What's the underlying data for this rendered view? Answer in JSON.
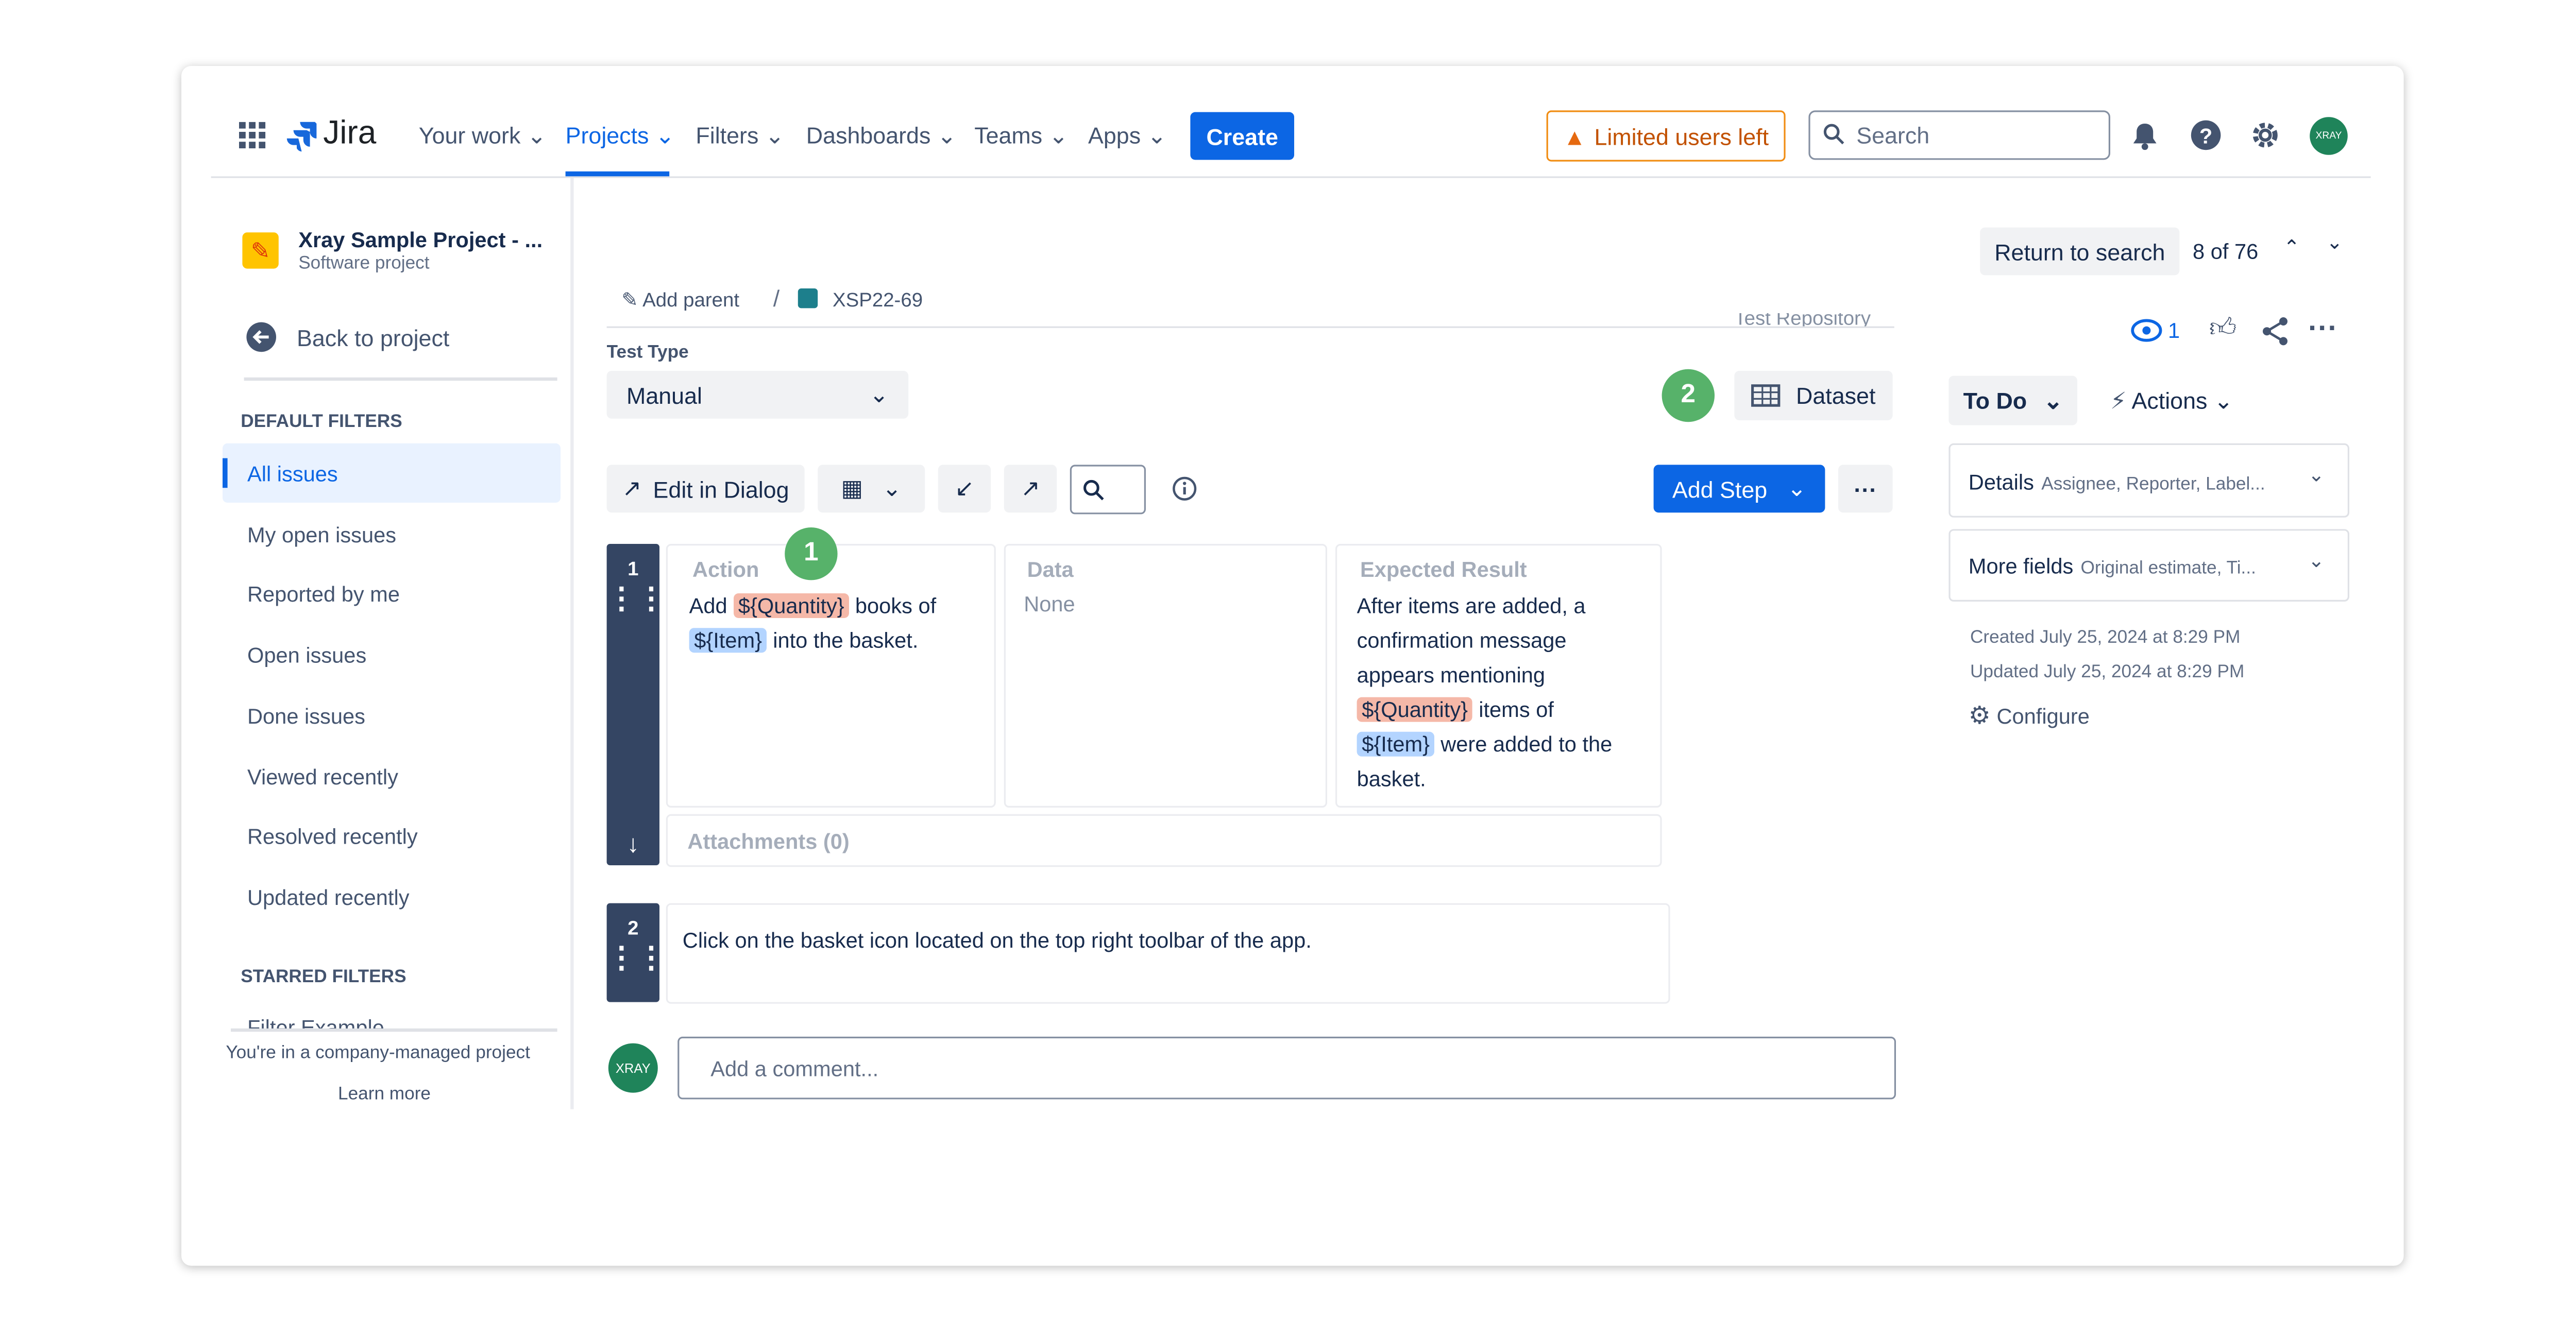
{
  "nav": {
    "logo": "Jira",
    "items": [
      "Your work",
      "Projects",
      "Filters",
      "Dashboards",
      "Teams",
      "Apps"
    ],
    "create": "Create",
    "limited": "Limited users left",
    "search": "Search",
    "avatar": "XRAY"
  },
  "sidebar": {
    "project_name": "Xray Sample Project - ...",
    "project_type": "Software project",
    "back": "Back to project",
    "default_heading": "DEFAULT FILTERS",
    "filters": [
      "All issues",
      "My open issues",
      "Reported by me",
      "Open issues",
      "Done issues",
      "Viewed recently",
      "Resolved recently",
      "Updated recently"
    ],
    "starred_heading": "STARRED FILTERS",
    "starred": [
      "Filter Example"
    ],
    "footer": "You're in a company-managed project",
    "learn_more": "Learn more"
  },
  "issue": {
    "add_parent": "Add parent",
    "separator": "/",
    "key": "XSP22-69",
    "repository": "Test Repository",
    "test_type_label": "Test Type",
    "test_type": "Manual",
    "badges": [
      "1",
      "2"
    ],
    "dataset": "Dataset",
    "edit_dialog": "Edit in Dialog",
    "add_step": "Add Step",
    "steps": [
      {
        "number": "1",
        "headers": [
          "Action",
          "Data",
          "Expected Result"
        ],
        "action": [
          "Add",
          "${Quantity}",
          "books of",
          "${Item}",
          "into the basket."
        ],
        "data": "None",
        "expected": [
          "After items are added, a confirmation message appears mentioning",
          "${Quantity}",
          "items of",
          "${Item}",
          "were added to the basket."
        ],
        "attachments": "Attachments (0)"
      },
      {
        "number": "2",
        "action": "Click on the basket icon located on the top right toolbar of the app."
      }
    ],
    "comment_avatar": "XRAY",
    "comment_placeholder": "Add a comment..."
  },
  "panel": {
    "return": "Return to search",
    "position": "8 of 76",
    "watchers": "1",
    "status": "To Do",
    "actions": "Actions",
    "details": "Details",
    "details_hint": "Assignee, Reporter, Label...",
    "more_fields": "More fields",
    "more_fields_hint": "Original estimate, Ti...",
    "created": "Created July 25, 2024 at 8:29 PM",
    "updated": "Updated July 25, 2024 at 8:29 PM",
    "configure": "Configure"
  }
}
